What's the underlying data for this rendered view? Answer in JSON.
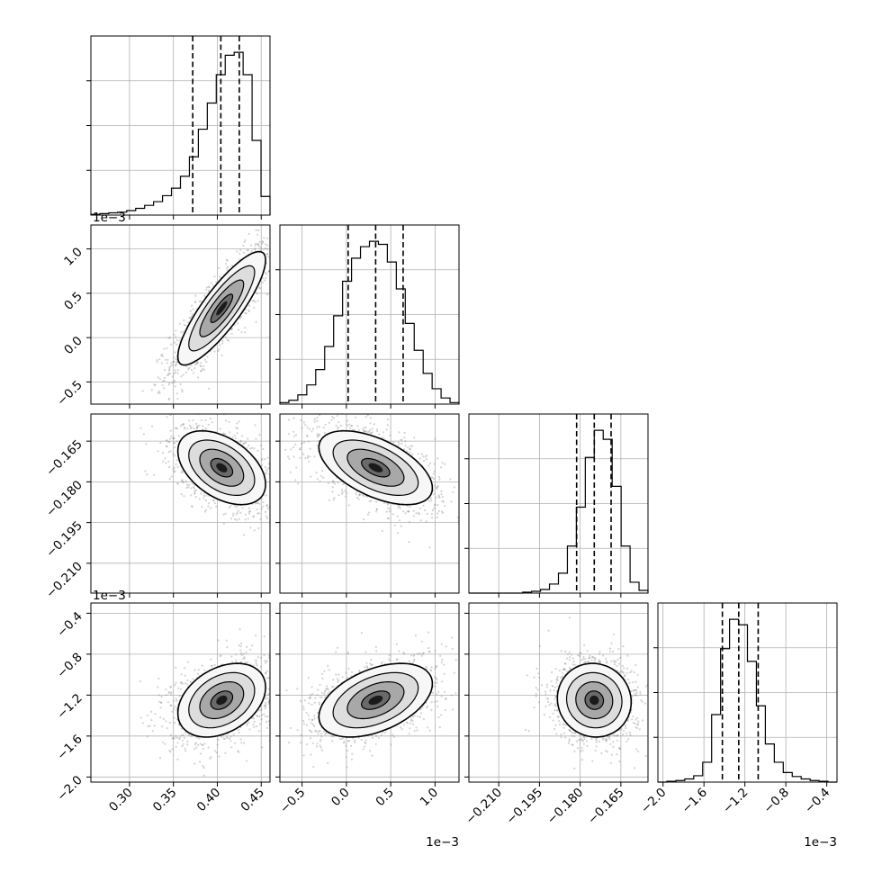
{
  "figure": {
    "background": "#ffffff",
    "line_color": "#000000",
    "grid_color": "#b0b0b0",
    "scatter_color": "#808080"
  },
  "chart_data": {
    "type": "corner",
    "parameters": [
      {
        "range": [
          0.256,
          0.46
        ],
        "ticks": [
          0.3,
          0.35,
          0.4,
          0.45
        ],
        "tick_labels": [
          "0.30",
          "0.35",
          "0.40",
          "0.45"
        ],
        "offset_label": "",
        "mean": 0.405,
        "std": 0.025,
        "quantiles": [
          0.372,
          0.404,
          0.425
        ]
      },
      {
        "range": [
          -0.75,
          1.27
        ],
        "ticks": [
          -0.5,
          0.0,
          0.5,
          1.0
        ],
        "tick_labels": [
          "−0.5",
          "0.0",
          "0.5",
          "1.0"
        ],
        "offset_label": "1e−3",
        "mean": 0.33,
        "std": 0.32,
        "quantiles": [
          0.02,
          0.33,
          0.64
        ]
      },
      {
        "range": [
          -0.221,
          -0.155
        ],
        "ticks": [
          -0.21,
          -0.195,
          -0.18,
          -0.165
        ],
        "tick_labels": [
          "−0.210",
          "−0.195",
          "−0.180",
          "−0.165"
        ],
        "offset_label": "",
        "mean": -0.1748,
        "std": 0.0068,
        "quantiles": [
          -0.1813,
          -0.1748,
          -0.1686
        ]
      },
      {
        "range": [
          -2.05,
          -0.3
        ],
        "ticks": [
          -2.0,
          -1.6,
          -1.2,
          -0.8,
          -0.4
        ],
        "tick_labels": [
          "−2.0",
          "−1.6",
          "−1.2",
          "−0.8",
          "−0.4"
        ],
        "offset_label": "1e−3",
        "mean": -1.25,
        "std": 0.18,
        "quantiles": [
          -1.42,
          -1.26,
          -1.07
        ]
      }
    ],
    "x_tick_labels_bottom": [
      [
        "0.30",
        "0.35",
        "0.40",
        "0.45"
      ],
      [
        "−0.5",
        "0.0",
        "0.5",
        "1.0"
      ],
      [
        "−0.210",
        "−0.195",
        "−0.180",
        "−0.165"
      ],
      [
        "−2.0",
        "−1.6",
        "−1.2",
        "−0.8",
        "−0.4"
      ]
    ],
    "y_tick_labels_left": [
      [],
      [
        "−0.5",
        "0.0",
        "0.5",
        "1.0"
      ],
      [
        "−0.210",
        "−0.195",
        "−0.180",
        "−0.165"
      ],
      [
        "−2.0",
        "−1.6",
        "−1.2",
        "−0.8",
        "−0.4"
      ]
    ],
    "offset_labels": {
      "y_row2": "1e−3",
      "y_row4": "1e−3",
      "x_col2": "1e−3",
      "x_col4": "1e−3"
    },
    "histograms": [
      {
        "param": 0,
        "bin_edges": [
          0.256,
          0.2662,
          0.2764,
          0.2866,
          0.2968,
          0.307,
          0.3172,
          0.3274,
          0.3376,
          0.3478,
          0.358,
          0.3682,
          0.3784,
          0.3886,
          0.3988,
          0.409,
          0.4192,
          0.4294,
          0.4396,
          0.4498,
          0.46
        ],
        "counts": [
          1,
          2,
          3,
          4,
          6,
          9,
          13,
          18,
          26,
          36,
          52,
          78,
          115,
          150,
          188,
          214,
          218,
          188,
          100,
          25
        ],
        "quantiles": [
          0.372,
          0.404,
          0.425
        ]
      },
      {
        "param": 1,
        "bin_edges": [
          -0.75,
          -0.649,
          -0.548,
          -0.447,
          -0.346,
          -0.245,
          -0.144,
          -0.043,
          0.058,
          0.159,
          0.26,
          0.361,
          0.462,
          0.563,
          0.664,
          0.765,
          0.866,
          0.967,
          1.068,
          1.169,
          1.27
        ],
        "counts": [
          2,
          5,
          12,
          25,
          45,
          75,
          115,
          160,
          190,
          205,
          212,
          208,
          185,
          150,
          105,
          70,
          40,
          20,
          8,
          2
        ],
        "quantiles": [
          0.02,
          0.33,
          0.64
        ]
      },
      {
        "param": 2,
        "bin_edges": [
          -0.221,
          -0.2177,
          -0.2144,
          -0.2111,
          -0.2078,
          -0.2045,
          -0.2012,
          -0.1979,
          -0.1946,
          -0.1913,
          -0.188,
          -0.1847,
          -0.1814,
          -0.1781,
          -0.1748,
          -0.1715,
          -0.1682,
          -0.1649,
          -0.1616,
          -0.1583,
          -0.155
        ],
        "counts": [
          0,
          0,
          0,
          0,
          0,
          0,
          1,
          2,
          4,
          10,
          22,
          52,
          95,
          150,
          180,
          170,
          118,
          52,
          12,
          3
        ],
        "quantiles": [
          -0.1813,
          -0.1748,
          -0.1686
        ]
      },
      {
        "param": 3,
        "bin_edges": [
          -2.05,
          -1.9625,
          -1.875,
          -1.7875,
          -1.7,
          -1.6125,
          -1.525,
          -1.4375,
          -1.35,
          -1.2625,
          -1.175,
          -1.0875,
          -1.0,
          -0.9125,
          -0.825,
          -0.7375,
          -0.65,
          -0.5625,
          -0.475,
          -0.3875,
          -0.3
        ],
        "counts": [
          0,
          1,
          2,
          4,
          8,
          25,
          85,
          168,
          205,
          198,
          152,
          96,
          48,
          25,
          12,
          7,
          4,
          2,
          1,
          0
        ],
        "quantiles": [
          -1.42,
          -1.26,
          -1.07
        ]
      }
    ],
    "pairs": [
      {
        "row": 1,
        "col": 0,
        "correlation": 0.85,
        "contour_sigma": [
          0.5,
          1.0,
          1.5,
          2.0
        ]
      },
      {
        "row": 2,
        "col": 0,
        "correlation": -0.45,
        "contour_sigma": [
          0.5,
          1.0,
          1.5,
          2.0
        ]
      },
      {
        "row": 2,
        "col": 1,
        "correlation": -0.55,
        "contour_sigma": [
          0.5,
          1.0,
          1.5,
          2.0
        ]
      },
      {
        "row": 3,
        "col": 0,
        "correlation": 0.35,
        "contour_sigma": [
          0.5,
          1.0,
          1.5,
          2.0
        ]
      },
      {
        "row": 3,
        "col": 1,
        "correlation": 0.45,
        "contour_sigma": [
          0.5,
          1.0,
          1.5,
          2.0
        ]
      },
      {
        "row": 3,
        "col": 2,
        "correlation": -0.05,
        "contour_sigma": [
          0.5,
          1.0,
          1.5,
          2.0
        ]
      }
    ],
    "grid": true,
    "legend": "none"
  }
}
